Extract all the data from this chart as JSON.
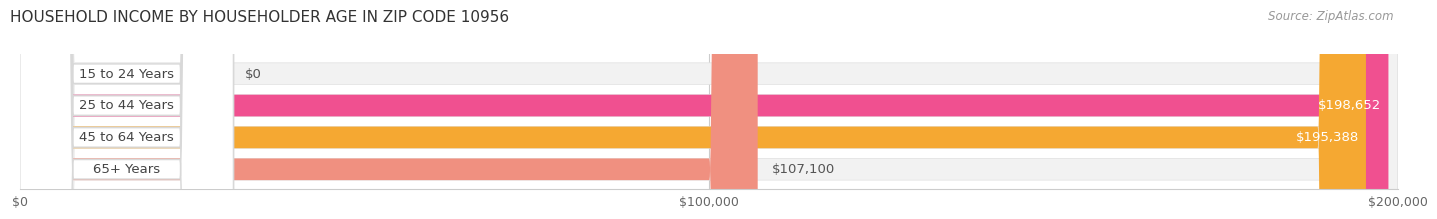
{
  "title": "HOUSEHOLD INCOME BY HOUSEHOLDER AGE IN ZIP CODE 10956",
  "source": "Source: ZipAtlas.com",
  "categories": [
    "15 to 24 Years",
    "25 to 44 Years",
    "45 to 64 Years",
    "65+ Years"
  ],
  "values": [
    0,
    198652,
    195388,
    107100
  ],
  "bar_colors": [
    "#b4bce8",
    "#f05090",
    "#f5a832",
    "#f09080"
  ],
  "value_labels": [
    "$0",
    "$198,652",
    "$195,388",
    "$107,100"
  ],
  "value_label_inside": [
    false,
    true,
    true,
    false
  ],
  "x_tick_labels": [
    "$0",
    "$100,000",
    "$200,000"
  ],
  "x_tick_values": [
    0,
    100000,
    200000
  ],
  "xlim_max": 200000,
  "title_fontsize": 11,
  "label_fontsize": 9.5,
  "tick_fontsize": 9,
  "source_fontsize": 8.5
}
